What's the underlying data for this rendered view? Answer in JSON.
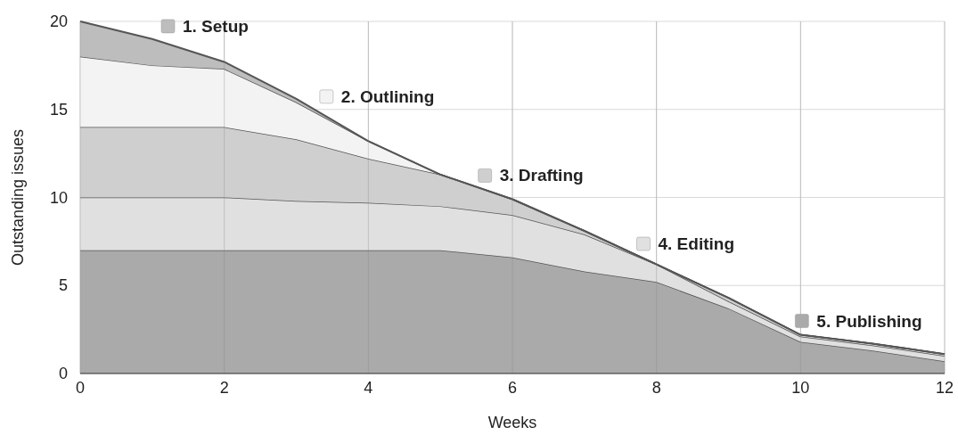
{
  "chart_data": {
    "type": "area",
    "stacked": true,
    "xlabel": "Weeks",
    "ylabel": "Outstanding issues",
    "x": [
      0,
      1,
      2,
      3,
      4,
      5,
      6,
      7,
      8,
      9,
      10,
      11,
      12
    ],
    "xlim": [
      0,
      12
    ],
    "xticks": [
      0,
      2,
      4,
      6,
      8,
      10,
      12
    ],
    "ylim": [
      0,
      20
    ],
    "yticks": [
      0,
      5,
      10,
      15,
      20
    ],
    "grid": true,
    "legend": "top",
    "series": [
      {
        "name": "5. Publishing",
        "color": "#aaaaaa",
        "values": [
          7,
          7,
          7,
          7,
          7,
          7,
          6.6,
          5.8,
          5.2,
          3.7,
          1.8,
          1.3,
          0.7
        ]
      },
      {
        "name": "4. Editing",
        "color": "#e0e0e0",
        "values": [
          3,
          3,
          3,
          2.8,
          2.7,
          2.5,
          2.4,
          2.1,
          1.0,
          0.4,
          0.3,
          0.3,
          0.3
        ]
      },
      {
        "name": "3. Drafting",
        "color": "#cfcfcf",
        "values": [
          4,
          4,
          4,
          3.5,
          2.5,
          1.8,
          0.9,
          0.2,
          0,
          0.2,
          0.1,
          0.1,
          0.1
        ]
      },
      {
        "name": "2. Outlining",
        "color": "#f3f3f3",
        "values": [
          4,
          3.5,
          3.3,
          2.1,
          1.0,
          0,
          0,
          0,
          0,
          0,
          0,
          0,
          0
        ]
      },
      {
        "name": "1. Setup",
        "color": "#bdbdbd",
        "values": [
          2,
          1.5,
          0.4,
          0.2,
          0,
          0,
          0,
          0,
          0,
          0,
          0,
          0,
          0
        ]
      }
    ]
  }
}
